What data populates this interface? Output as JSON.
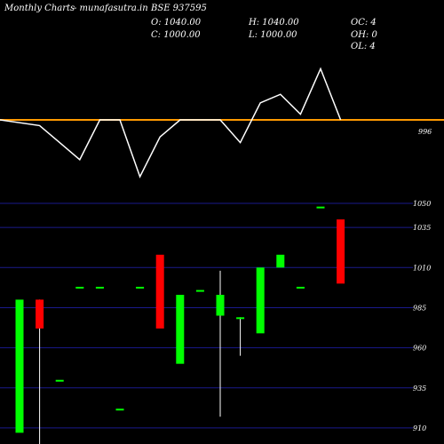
{
  "header": {
    "title": "Monthly Charts",
    "source": "- munafasutra.in",
    "symbol": "BSE 937595",
    "open": "O: 1040.00",
    "high": "H: 1040.00",
    "oc": "OC: 4",
    "close": "C: 1000.00",
    "low": "L: 1000.00",
    "oh": "OH: 0",
    "ol": "OL: 4"
  },
  "colors": {
    "background": "#000000",
    "up": "#00ff00",
    "down": "#ff0000",
    "neutral": "#00ff00",
    "line": "#ffffff",
    "average": "#ff9900",
    "grid": "#1a1a8c"
  },
  "chart_data": [
    {
      "type": "line",
      "series": [
        {
          "values": [
            1000,
            998,
            992,
            986,
            1000,
            1000,
            980,
            994,
            1000,
            1000,
            1000,
            992,
            1006,
            1009,
            1002,
            1018,
            1000
          ]
        },
        {
          "values": [
            1000,
            1000,
            1000,
            1000,
            1000,
            1000,
            1000,
            1000,
            1000,
            1000,
            1000,
            1000,
            1000,
            1000,
            1000,
            1000,
            1000
          ]
        }
      ],
      "ylim": [
        975,
        1025
      ],
      "ticks": [
        996
      ]
    },
    {
      "type": "candlestick",
      "candles": [
        {
          "o": 907,
          "h": 990,
          "l": 907,
          "c": 990
        },
        {
          "o": 990,
          "h": 990,
          "l": 900,
          "c": 972
        },
        {
          "o": 940,
          "h": 940,
          "l": 940,
          "c": 940
        },
        {
          "o": 998,
          "h": 998,
          "l": 998,
          "c": 998
        },
        {
          "o": 998,
          "h": 998,
          "l": 998,
          "c": 998
        },
        {
          "o": 922,
          "h": 922,
          "l": 922,
          "c": 922
        },
        {
          "o": 998,
          "h": 998,
          "l": 998,
          "c": 998
        },
        {
          "o": 1018,
          "h": 1018,
          "l": 972,
          "c": 972
        },
        {
          "o": 950,
          "h": 993,
          "l": 950,
          "c": 993
        },
        {
          "o": 996,
          "h": 996,
          "l": 996,
          "c": 996
        },
        {
          "o": 980,
          "h": 1008,
          "l": 917,
          "c": 993
        },
        {
          "o": 979,
          "h": 979,
          "l": 955,
          "c": 979
        },
        {
          "o": 969,
          "h": 1010,
          "l": 969,
          "c": 1010
        },
        {
          "o": 1010,
          "h": 1018,
          "l": 1010,
          "c": 1018
        },
        {
          "o": 998,
          "h": 998,
          "l": 998,
          "c": 998
        },
        {
          "o": 1048,
          "h": 1048,
          "l": 1048,
          "c": 1048
        },
        {
          "o": 1040,
          "h": 1040,
          "l": 1000,
          "c": 1000
        }
      ],
      "ylim": [
        900,
        1055
      ],
      "ticks": [
        1050,
        1035,
        1010,
        985,
        960,
        935,
        910
      ]
    }
  ]
}
